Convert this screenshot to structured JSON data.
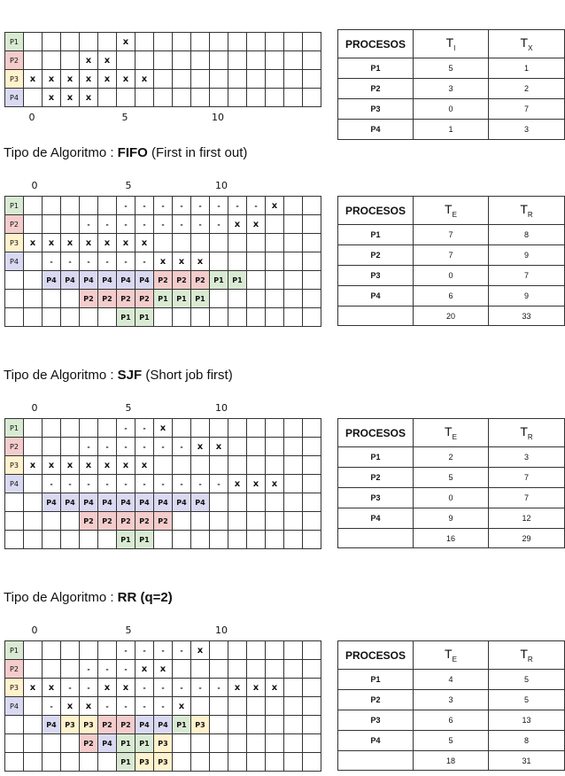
{
  "colors": {
    "P1": "#d9ead3",
    "P2": "#f4cccc",
    "P3": "#fff2cc",
    "P4": "#d9d9f2"
  },
  "axis": {
    "labels": [
      "0",
      "5",
      "10"
    ]
  },
  "gantt_input": {
    "rows": [
      [
        "P1",
        "",
        "",
        "",
        "",
        "",
        "x",
        "",
        "",
        "",
        "",
        "",
        "",
        "",
        "",
        "",
        ""
      ],
      [
        "P2",
        "",
        "",
        "",
        "x",
        "x",
        "",
        "",
        "",
        "",
        "",
        "",
        "",
        "",
        "",
        "",
        ""
      ],
      [
        "P3",
        "x",
        "x",
        "x",
        "x",
        "x",
        "x",
        "x",
        "",
        "",
        "",
        "",
        "",
        "",
        "",
        "",
        ""
      ],
      [
        "P4",
        "",
        "x",
        "x",
        "x",
        "",
        "",
        "",
        "",
        "",
        "",
        "",
        "",
        "",
        "",
        "",
        ""
      ]
    ]
  },
  "table_input": {
    "headers": [
      "PROCESOS",
      "T",
      "I",
      "T",
      "X"
    ],
    "rows": [
      [
        "P1",
        "5",
        "1"
      ],
      [
        "P2",
        "3",
        "2"
      ],
      [
        "P3",
        "0",
        "7"
      ],
      [
        "P4",
        "1",
        "3"
      ]
    ]
  },
  "fifo": {
    "title_prefix": "Tipo de Algoritmo : ",
    "title_bold": "FIFO",
    "title_suffix": " (First in first out)",
    "gantt": [
      [
        "P1",
        "",
        "",
        "",
        "",
        "",
        "-",
        "-",
        "-",
        "-",
        "-",
        "-",
        "-",
        "-",
        "x",
        "",
        ""
      ],
      [
        "P2",
        "",
        "",
        "",
        "-",
        "-",
        "-",
        "-",
        "-",
        "-",
        "-",
        "-",
        "x",
        "x",
        "",
        "",
        ""
      ],
      [
        "P3",
        "x",
        "x",
        "x",
        "x",
        "x",
        "x",
        "x",
        "",
        "",
        "",
        "",
        "",
        "",
        "",
        "",
        ""
      ],
      [
        "P4",
        "",
        "-",
        "-",
        "-",
        "-",
        "-",
        "-",
        "x",
        "x",
        "x",
        "",
        "",
        "",
        "",
        "",
        ""
      ],
      [
        "",
        "",
        "P4",
        "P4",
        "P4",
        "P4",
        "P4",
        "P4",
        "P2",
        "P2",
        "P2",
        "P1",
        "P1",
        "",
        "",
        "",
        ""
      ],
      [
        "",
        "",
        "",
        "",
        "P2",
        "P2",
        "P2",
        "P2",
        "P1",
        "P1",
        "P1",
        "",
        "",
        "",
        "",
        "",
        ""
      ],
      [
        "",
        "",
        "",
        "",
        "",
        "",
        "P1",
        "P1",
        "",
        "",
        "",
        "",
        "",
        "",
        "",
        "",
        ""
      ]
    ],
    "table": {
      "headers": [
        "PROCESOS",
        "T",
        "E",
        "T",
        "R"
      ],
      "rows": [
        [
          "P1",
          "7",
          "8"
        ],
        [
          "P2",
          "7",
          "9"
        ],
        [
          "P3",
          "0",
          "7"
        ],
        [
          "P4",
          "6",
          "9"
        ]
      ],
      "totals": [
        "",
        "20",
        "33"
      ]
    }
  },
  "sjf": {
    "title_prefix": "Tipo de Algoritmo : ",
    "title_bold": "SJF",
    "title_suffix": " (Short job first)",
    "gantt": [
      [
        "P1",
        "",
        "",
        "",
        "",
        "",
        "-",
        "-",
        "x",
        "",
        "",
        "",
        "",
        "",
        "",
        "",
        ""
      ],
      [
        "P2",
        "",
        "",
        "",
        "-",
        "-",
        "-",
        "-",
        "-",
        "-",
        "x",
        "x",
        "",
        "",
        "",
        "",
        ""
      ],
      [
        "P3",
        "x",
        "x",
        "x",
        "x",
        "x",
        "x",
        "x",
        "",
        "",
        "",
        "",
        "",
        "",
        "",
        "",
        ""
      ],
      [
        "P4",
        "",
        "-",
        "-",
        "-",
        "-",
        "-",
        "-",
        "-",
        "-",
        "-",
        "-",
        "x",
        "x",
        "x",
        "",
        ""
      ],
      [
        "",
        "",
        "P4",
        "P4",
        "P4",
        "P4",
        "P4",
        "P4",
        "P4",
        "P4",
        "P4",
        "",
        "",
        "",
        "",
        "",
        ""
      ],
      [
        "",
        "",
        "",
        "",
        "P2",
        "P2",
        "P2",
        "P2",
        "P2",
        "",
        "",
        "",
        "",
        "",
        "",
        "",
        ""
      ],
      [
        "",
        "",
        "",
        "",
        "",
        "",
        "P1",
        "P1",
        "",
        "",
        "",
        "",
        "",
        "",
        "",
        "",
        ""
      ]
    ],
    "table": {
      "headers": [
        "PROCESOS",
        "T",
        "E",
        "T",
        "R"
      ],
      "rows": [
        [
          "P1",
          "2",
          "3"
        ],
        [
          "P2",
          "5",
          "7"
        ],
        [
          "P3",
          "0",
          "7"
        ],
        [
          "P4",
          "9",
          "12"
        ]
      ],
      "totals": [
        "",
        "16",
        "29"
      ]
    }
  },
  "rr": {
    "title_prefix": "Tipo de Algoritmo : ",
    "title_bold": "RR (q=2)",
    "title_suffix": "",
    "gantt": [
      [
        "P1",
        "",
        "",
        "",
        "",
        "",
        "-",
        "-",
        "-",
        "-",
        "x",
        "",
        "",
        "",
        "",
        "",
        ""
      ],
      [
        "P2",
        "",
        "",
        "",
        "-",
        "-",
        "-",
        "x",
        "x",
        "",
        "",
        "",
        "",
        "",
        "",
        "",
        ""
      ],
      [
        "P3",
        "x",
        "x",
        "-",
        "-",
        "x",
        "x",
        "-",
        "-",
        "-",
        "-",
        "-",
        "x",
        "x",
        "x",
        "",
        ""
      ],
      [
        "P4",
        "",
        "-",
        "x",
        "x",
        "-",
        "-",
        "-",
        "-",
        "x",
        "",
        "",
        "",
        "",
        "",
        "",
        ""
      ],
      [
        "",
        "",
        "P4",
        "P3",
        "P3",
        "P2",
        "P2",
        "P4",
        "P4",
        "P1",
        "P3",
        "",
        "",
        "",
        "",
        "",
        ""
      ],
      [
        "",
        "",
        "",
        "",
        "P2",
        "P4",
        "P1",
        "P1",
        "P3",
        "",
        "",
        "",
        "",
        "",
        "",
        "",
        ""
      ],
      [
        "",
        "",
        "",
        "",
        "",
        "",
        "P1",
        "P3",
        "P3",
        "",
        "",
        "",
        "",
        "",
        "",
        "",
        ""
      ]
    ],
    "table": {
      "headers": [
        "PROCESOS",
        "T",
        "E",
        "T",
        "R"
      ],
      "rows": [
        [
          "P1",
          "4",
          "5"
        ],
        [
          "P2",
          "3",
          "5"
        ],
        [
          "P3",
          "6",
          "13"
        ],
        [
          "P4",
          "5",
          "8"
        ]
      ],
      "totals": [
        "",
        "18",
        "31"
      ]
    }
  }
}
